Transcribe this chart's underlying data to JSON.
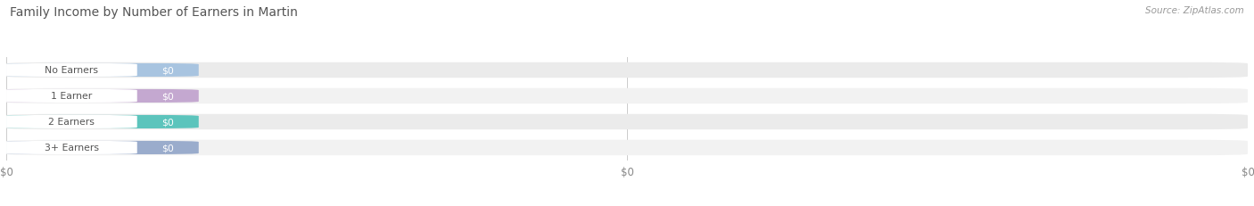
{
  "title": "Family Income by Number of Earners in Martin",
  "source": "Source: ZipAtlas.com",
  "categories": [
    "No Earners",
    "1 Earner",
    "2 Earners",
    "3+ Earners"
  ],
  "values": [
    0,
    0,
    0,
    0
  ],
  "bar_colors": [
    "#a8c4e0",
    "#c4a8d0",
    "#5cc4bc",
    "#9aaccc"
  ],
  "row_bg_colors": [
    "#ebebeb",
    "#f2f2f2",
    "#ebebeb",
    "#f2f2f2"
  ],
  "xtick_labels": [
    "$0",
    "$0",
    "$0"
  ],
  "xtick_positions": [
    0.0,
    0.5,
    1.0
  ],
  "title_color": "#555555",
  "source_color": "#999999",
  "background_color": "#ffffff",
  "figsize": [
    14.06,
    2.32
  ],
  "dpi": 100
}
